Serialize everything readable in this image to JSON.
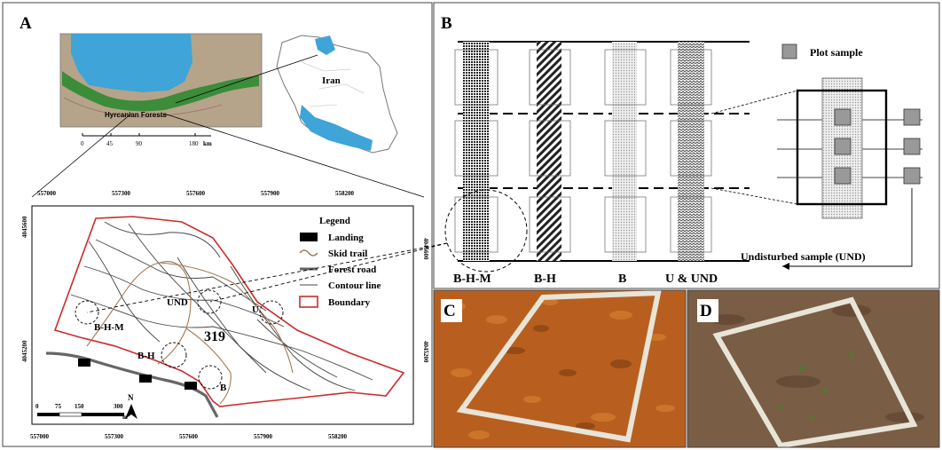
{
  "panels": {
    "a": {
      "letter": "A"
    },
    "b": {
      "letter": "B"
    },
    "c": {
      "letter": "C"
    },
    "d": {
      "letter": "D"
    }
  },
  "overview": {
    "region_label": "Hyrcanian Forests",
    "country_label": "Iran",
    "scale_ticks": [
      "0",
      "45",
      "90",
      "180"
    ],
    "scale_unit": "km"
  },
  "map": {
    "x_ticks": [
      "557000",
      "557300",
      "557600",
      "557900",
      "558200"
    ],
    "y_ticks": [
      "4045600",
      "4045200"
    ],
    "compartment": "319",
    "sites": [
      "B-H-M",
      "UND",
      "U",
      "B-H",
      "B"
    ],
    "scale_ticks": [
      "0",
      "75",
      "150",
      "300"
    ],
    "scale_unit": "m",
    "north": "N"
  },
  "legend": {
    "title": "Legend",
    "items": [
      "Landing",
      "Skid trail",
      "Forest road",
      "Contour line",
      "Boundary"
    ]
  },
  "diagram": {
    "strips": [
      "B-H-M",
      "B-H",
      "B",
      "U & UND"
    ],
    "plot_sample": "Plot sample",
    "undisturbed": "Undisturbed sample (UND)"
  },
  "colors": {
    "sea": "#3fa4d8",
    "forest": "#3c8c3a",
    "terrain": "#b5a48a",
    "boundary": "#cc2b2b",
    "skid": "#a07850",
    "leaf": "#b85f1f",
    "soil": "#7a5d45"
  }
}
